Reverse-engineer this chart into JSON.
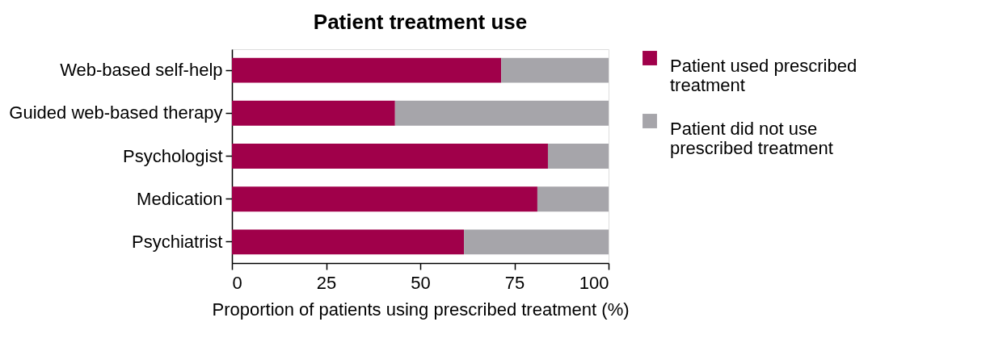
{
  "chart_data": {
    "type": "bar",
    "title": "Patient treatment use",
    "xlabel": "Proportion of patients using prescribed treatment (%)",
    "orientation": "horizontal",
    "stacked": true,
    "categories": [
      "Web-based self-help",
      "Guided web-based therapy",
      "Psychologist",
      "Medication",
      "Psychiatrist"
    ],
    "series": [
      {
        "name": "Patient used prescribed treatment",
        "color": "#a0004a",
        "values": [
          71.5,
          43.3,
          83.9,
          81.1,
          61.6
        ]
      },
      {
        "name": "Patient did not use prescribed treatment",
        "color": "#a6a5aa",
        "values": [
          28.5,
          56.7,
          16.1,
          18.9,
          38.4
        ]
      }
    ],
    "xlim": [
      0,
      100
    ],
    "xticks": [
      0,
      25,
      50,
      75,
      100
    ],
    "grid": false,
    "legend": "top right"
  }
}
